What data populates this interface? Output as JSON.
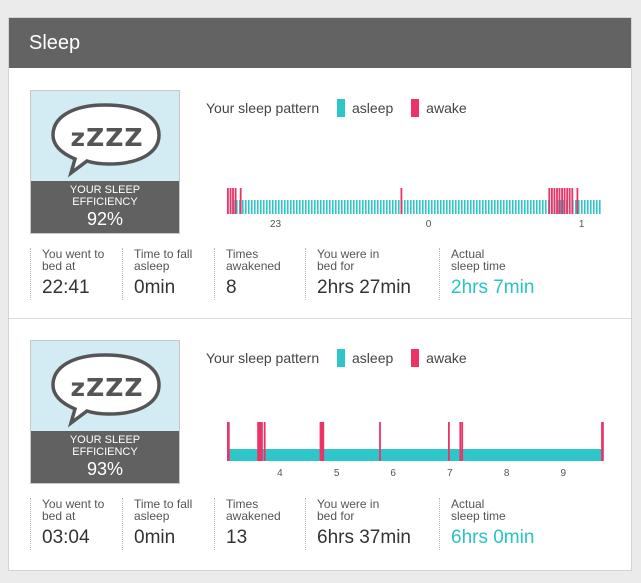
{
  "header": {
    "title": "Sleep"
  },
  "colors": {
    "asleep": "#2ec7c9",
    "awake": "#ea3468",
    "accent": "#2ac3c3",
    "header_bg": "#636363",
    "card_bg": "#d3ebf2"
  },
  "sessions": [
    {
      "efficiency_label_1": "YOUR SLEEP",
      "efficiency_label_2": "EFFICIENCY",
      "efficiency": "92%",
      "bubble_text": "zZZZ",
      "legend": {
        "title": "Your sleep pattern",
        "asleep": "asleep",
        "awake": "awake"
      },
      "chart_data": {
        "type": "bar",
        "x_ticks": [
          "23",
          "0",
          "1"
        ],
        "start_time": "22:41",
        "asleep_duration": "2hrs 7min",
        "awake_marks": [
          "22:41",
          "22:42",
          "22:43",
          "22:44",
          "22:46",
          "23:49",
          "00:47",
          "00:48",
          "00:49",
          "00:50",
          "00:51",
          "00:52",
          "00:53",
          "00:54",
          "00:55",
          "00:56",
          "00:58"
        ]
      },
      "stats": [
        {
          "label_1": "You went to",
          "label_2": "bed at",
          "value": "22:41"
        },
        {
          "label_1": "Time to fall",
          "label_2": "asleep",
          "value": "0min"
        },
        {
          "label_1": "Times",
          "label_2": "awakened",
          "value": "8"
        },
        {
          "label_1": "You were in",
          "label_2": "bed for",
          "value": "2hrs 27min"
        },
        {
          "label_1": "Actual",
          "label_2": "sleep time",
          "value": "2hrs 7min"
        }
      ]
    },
    {
      "efficiency_label_1": "YOUR SLEEP",
      "efficiency_label_2": "EFFICIENCY",
      "efficiency": "93%",
      "bubble_text": "zZZZ",
      "legend": {
        "title": "Your sleep pattern",
        "asleep": "asleep",
        "awake": "awake"
      },
      "chart_data": {
        "type": "bar",
        "x_ticks": [
          "4",
          "5",
          "6",
          "7",
          "8",
          "9"
        ],
        "start_time": "03:04",
        "asleep_duration": "6hrs 0min",
        "awake_marks": [
          "03:04",
          "03:05",
          "03:36",
          "03:37",
          "03:38",
          "03:39",
          "03:40",
          "03:43",
          "04:42",
          "04:43",
          "04:44",
          "04:45",
          "05:45",
          "06:58",
          "07:10",
          "07:12",
          "09:40",
          "09:41"
        ]
      },
      "stats": [
        {
          "label_1": "You went to",
          "label_2": "bed at",
          "value": "03:04"
        },
        {
          "label_1": "Time to fall",
          "label_2": "asleep",
          "value": "0min"
        },
        {
          "label_1": "Times",
          "label_2": "awakened",
          "value": "13"
        },
        {
          "label_1": "You were in",
          "label_2": "bed for",
          "value": "6hrs 37min"
        },
        {
          "label_1": "Actual",
          "label_2": "sleep time",
          "value": "6hrs 0min"
        }
      ]
    }
  ]
}
